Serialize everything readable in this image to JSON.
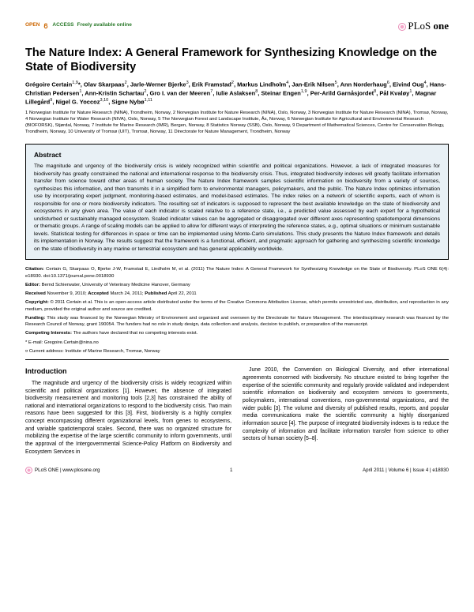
{
  "header": {
    "open": "OPEN",
    "access": "ACCESS",
    "freely": "Freely available online",
    "journal_prefix": "PLoS",
    "journal_suffix": "one"
  },
  "title": "The Nature Index: A General Framework for Synthesizing Knowledge on the State of Biodiversity",
  "authors_html": "Grégoire Certain<sup>1,9</sup>*, Olav Skarpaas<sup>2</sup>, Jarle-Werner Bjerke<sup>3</sup>, Erik Framstad<sup>2</sup>, Markus Lindholm<sup>4</sup>, Jan-Erik Nilsen<sup>5</sup>, Ann Norderhaug<sup>6</sup>, Eivind Oug<sup>4</sup>, Hans-Christian Pedersen<sup>1</sup>, Ann-Kristin Schartau<sup>2</sup>, Gro I. van der Meeren<sup>7</sup>, Iulie Aslaksen<sup>8</sup>, Steinar Engen<sup>1,9</sup>, Per-Arild Garnåsjordet<sup>8</sup>, Pål Kvaløy<sup>1</sup>, Magnar Lillegård<sup>9</sup>, Nigel G. Yoccoz<sup>3,10</sup>, Signe Nybø<sup>1,11</sup>",
  "affiliations": "1 Norwegian Institute for Nature Research (NINA), Trondheim, Norway, 2 Norwegian Institute for Nature Research (NINA), Oslo, Norway, 3 Norwegian Institute for Nature Research (NINA), Tromsø, Norway, 4 Norwegian Institute for Water Research (NIVA), Oslo, Norway, 5 The Norwegian Forest and Landscape Institute, Ås, Norway, 6 Norwegian Institute for Agricultural and Environmental Research (BIOFORSK), Stjørdal, Norway, 7 Institute for Marine Research (IMR), Bergen, Norway, 8 Statistics Norway (SSB), Oslo, Norway, 9 Department of Mathematical Sciences, Centre for Conservation Biology, Trondheim, Norway, 10 University of Tromsø (UIT), Tromsø, Norway, 11 Directorate for Nature Management, Trondheim, Norway",
  "abstract": {
    "heading": "Abstract",
    "text": "The magnitude and urgency of the biodiversity crisis is widely recognized within scientific and political organizations. However, a lack of integrated measures for biodiversity has greatly constrained the national and international response to the biodiversity crisis. Thus, integrated biodiversity indexes will greatly facilitate information transfer from science toward other areas of human society. The Nature Index framework samples scientific information on biodiversity from a variety of sources, synthesizes this information, and then transmits it in a simplified form to environmental managers, policymakers, and the public. The Nature Index optimizes information use by incorporating expert judgment, monitoring-based estimates, and model-based estimates. The index relies on a network of scientific experts, each of whom is responsible for one or more biodiversity indicators. The resulting set of indicators is supposed to represent the best available knowledge on the state of biodiversity and ecosystems in any given area. The value of each indicator is scaled relative to a reference state, i.e., a predicted value assessed by each expert for a hypothetical undisturbed or sustainably managed ecosystem. Scaled indicator values can be aggregated or disaggregated over different axes representing spatiotemporal dimensions or thematic groups. A range of scaling models can be applied to allow for different ways of interpreting the reference states, e.g., optimal situations or minimum sustainable levels. Statistical testing for differences in space or time can be implemented using Monte-Carlo simulations. This study presents the Nature Index framework and details its implementation in Norway. The results suggest that the framework is a functional, efficient, and pragmatic approach for gathering and synthesizing scientific knowledge on the state of biodiversity in any marine or terrestrial ecosystem and has general applicability worldwide."
  },
  "meta": {
    "citation": "Certain G, Skarpaas O, Bjerke J-W, Framstad E, Lindholm M, et al. (2011) The Nature Index: A General Framework for Synthesizing Knowledge on the State of Biodiversity. PLoS ONE 6(4): e18930. doi:10.1371/journal.pone.0018930",
    "editor": "Bernd Schierwater, University of Veterinary Medicine Hanover, Germany",
    "received": "November 9, 2010;",
    "accepted": "March 24, 2011;",
    "published": "April 22, 2011",
    "copyright": "© 2011 Certain et al. This is an open-access article distributed under the terms of the Creative Commons Attribution License, which permits unrestricted use, distribution, and reproduction in any medium, provided the original author and source are credited.",
    "funding": "This study was financed by the Norwegian Ministry of Environment and organized and overseen by the Directorate for Nature Management. The interdisciplinary research was financed by the Research Council of Norway, grant 190054. The funders had no role in study design, data collection and analysis, decision to publish, or preparation of the manuscript.",
    "competing": "The authors have declared that no competing interests exist.",
    "email": "* E-mail: Gregoire.Certain@nina.no",
    "current": "¤ Current address: Institute of Marine Research, Tromsø, Norway"
  },
  "intro": {
    "heading": "Introduction",
    "col1": "The magnitude and urgency of the biodiversity crisis is widely recognized within scientific and political organizations [1]. However, the absence of integrated biodiversity measurement and monitoring tools [2,3] has constrained the ability of national and international organizations to respond to the biodiversity crisis. Two main reasons have been suggested for this [3]. First, biodiversity is a highly complex concept encompassing different organizational levels, from genes to ecosystems, and variable spatiotemporal scales. Second, there was no organized structure for mobilizing the expertise of the large scientific community to inform governments, until the approval of the Intergovernmental Science-Policy Platform on Biodiversity and Ecosystem Services in",
    "col2": "June 2010, the Convention on Biological Diversity, and other international agreements concerned with biodiversity. No structure existed to bring together the expertise of the scientific community and regularly provide validated and independent scientific information on biodiversity and ecosystem services to governments, policymakers, international conventions, non-governmental organizations, and the wider public [3]. The volume and diversity of published results, reports, and popular media communications make the scientific community a highly disorganized information source [4]. The purpose of integrated biodiversity indexes is to reduce the complexity of information and facilitate information transfer from science to other sectors of human society [5–8]."
  },
  "footer": {
    "url": "PLoS ONE | www.plosone.org",
    "page": "1",
    "issue": "April 2011 | Volume 6 | Issue 4 | e18930"
  },
  "colors": {
    "abstract_bg": "#e8f0f5",
    "oa_open": "#cc6600",
    "oa_access": "#2a7a2a"
  }
}
